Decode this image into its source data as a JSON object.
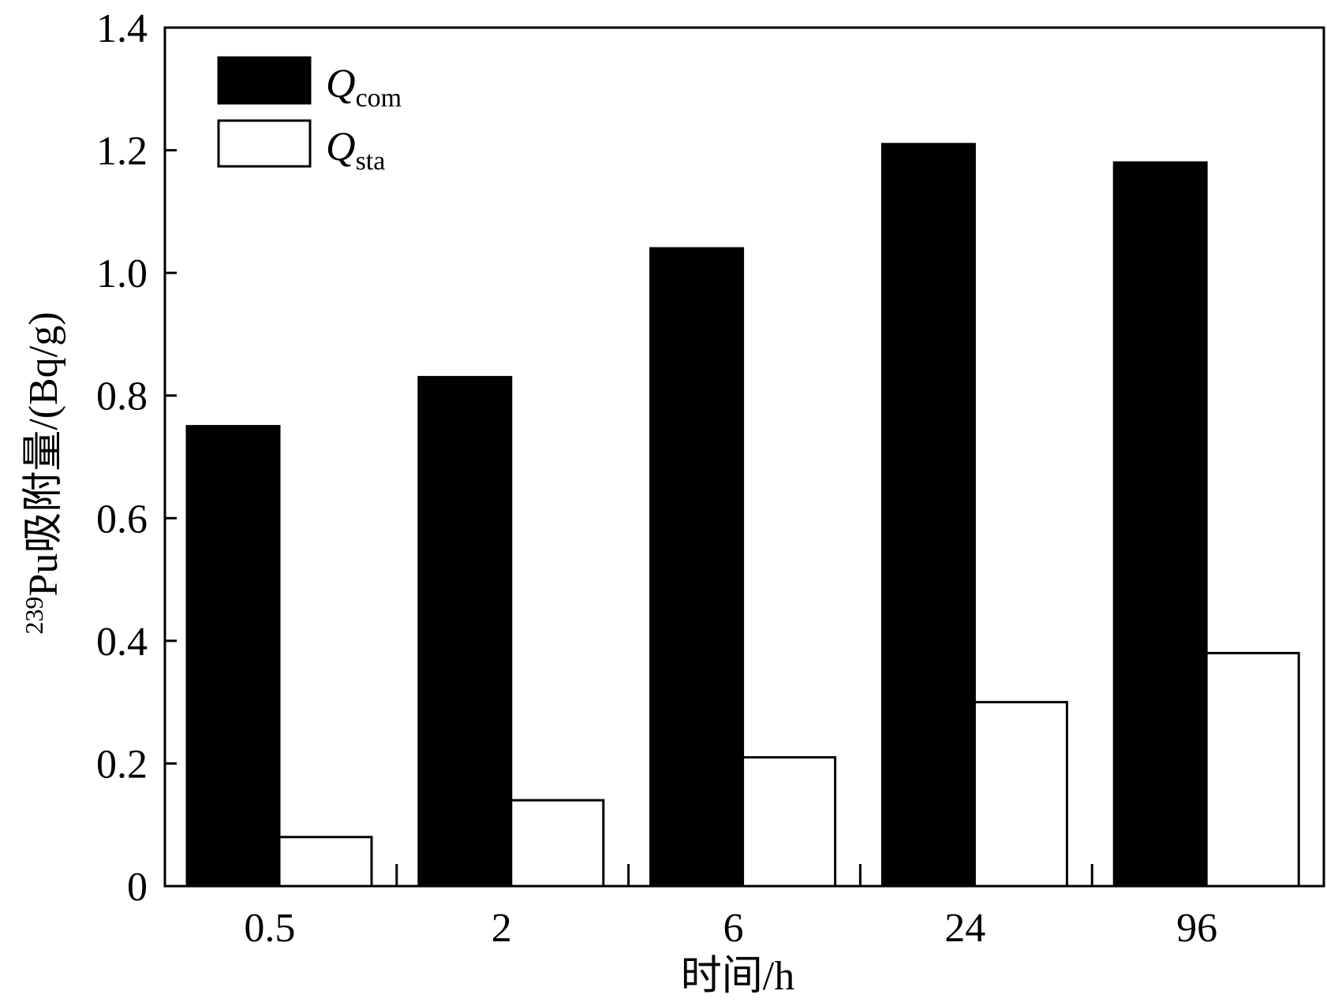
{
  "chart_data": {
    "type": "bar",
    "title": "",
    "xlabel": "时间/h",
    "ylabel": {
      "superscript": "239",
      "text": "Pu吸附量/(Bq/g)"
    },
    "categories": [
      "0.5",
      "2",
      "6",
      "24",
      "96"
    ],
    "ylim": [
      0,
      1.4
    ],
    "yticks": [
      "0",
      "0.2",
      "0.4",
      "0.6",
      "0.8",
      "1.0",
      "1.2",
      "1.4"
    ],
    "series": [
      {
        "name": "Q",
        "subscript": "com",
        "color": "#000000",
        "fill": "solid",
        "values": [
          0.75,
          0.83,
          1.04,
          1.21,
          1.18
        ]
      },
      {
        "name": "Q",
        "subscript": "sta",
        "color": "#ffffff",
        "fill": "hollow",
        "values": [
          0.08,
          0.14,
          0.21,
          0.3,
          0.38
        ]
      }
    ],
    "grid": false,
    "legend": "top-left"
  }
}
